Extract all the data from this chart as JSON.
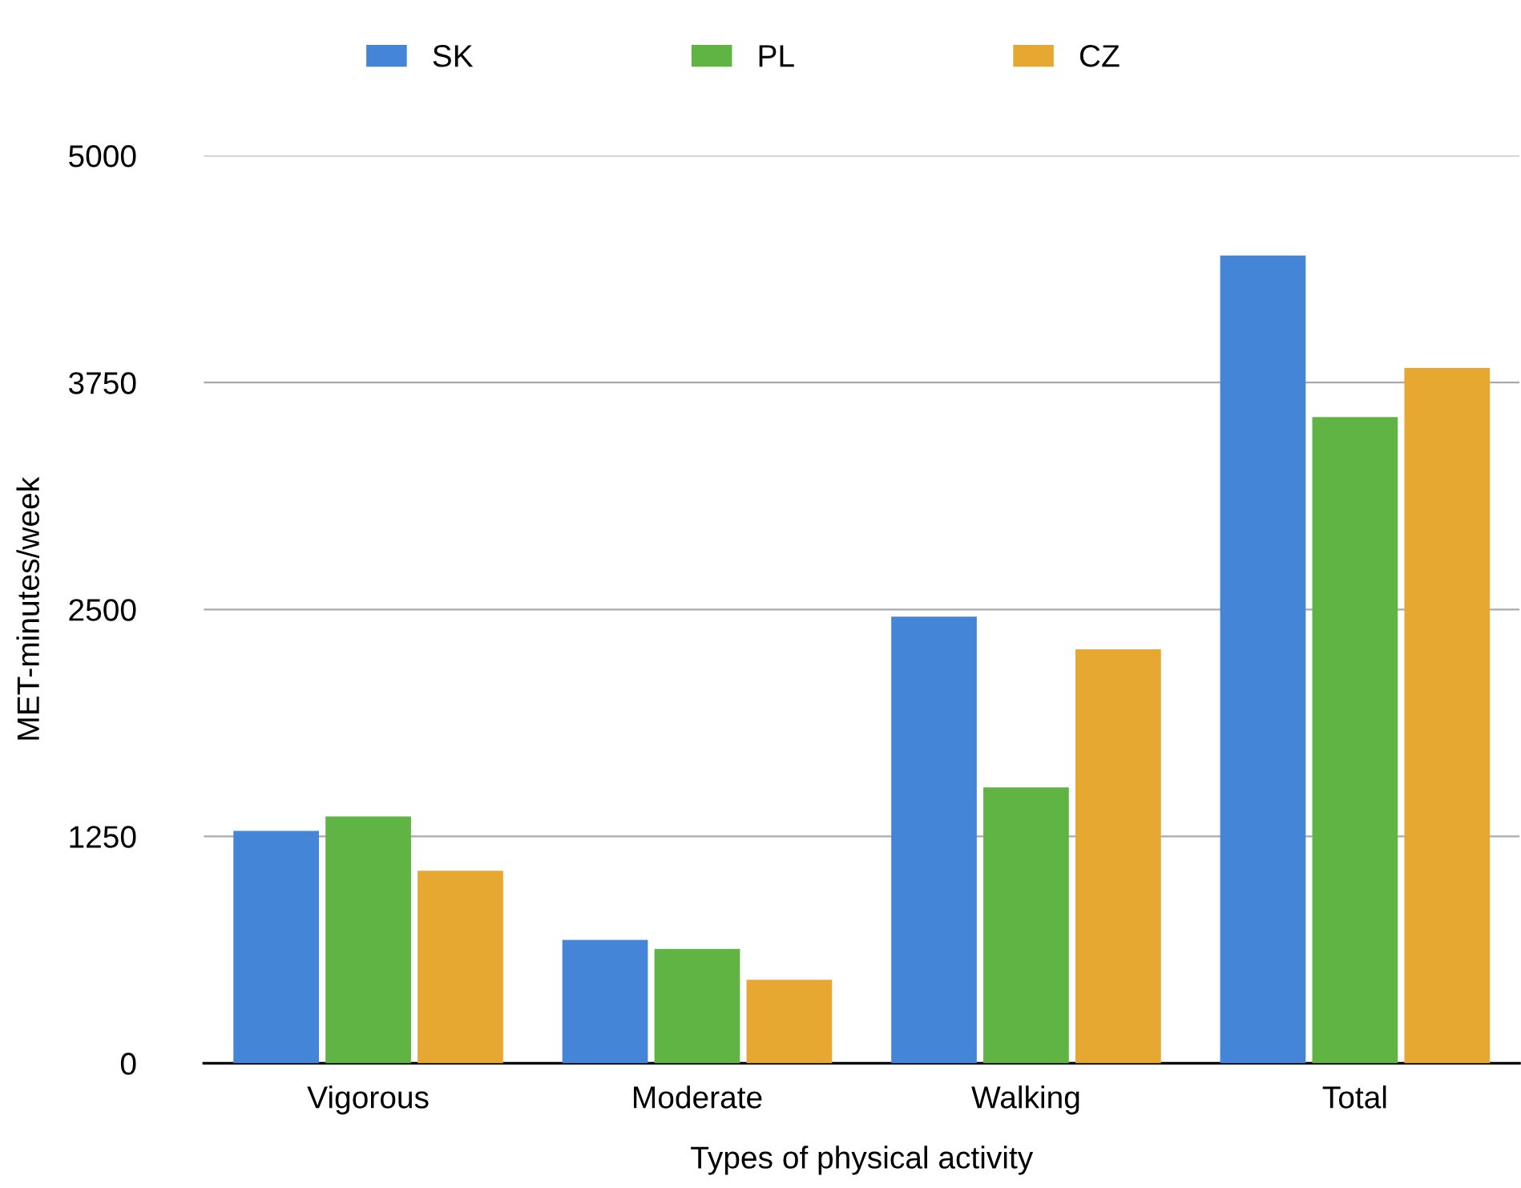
{
  "chart_data": {
    "type": "bar",
    "xlabel": "Types of physical activity",
    "ylabel": "MET-minutes/week",
    "categories": [
      "Vigorous",
      "Moderate",
      "Walking",
      "Total"
    ],
    "series": [
      {
        "name": "SK",
        "color": "#4585d8",
        "values": [
          1280,
          680,
          2460,
          4450
        ]
      },
      {
        "name": "PL",
        "color": "#5fb443",
        "values": [
          1360,
          630,
          1520,
          3560
        ]
      },
      {
        "name": "CZ",
        "color": "#e6a830",
        "values": [
          1060,
          460,
          2280,
          3830
        ]
      }
    ],
    "ylim": [
      0,
      5000
    ],
    "yticks": [
      0,
      1250,
      2500,
      3750,
      5000
    ],
    "grid": "y",
    "legend": "top"
  }
}
